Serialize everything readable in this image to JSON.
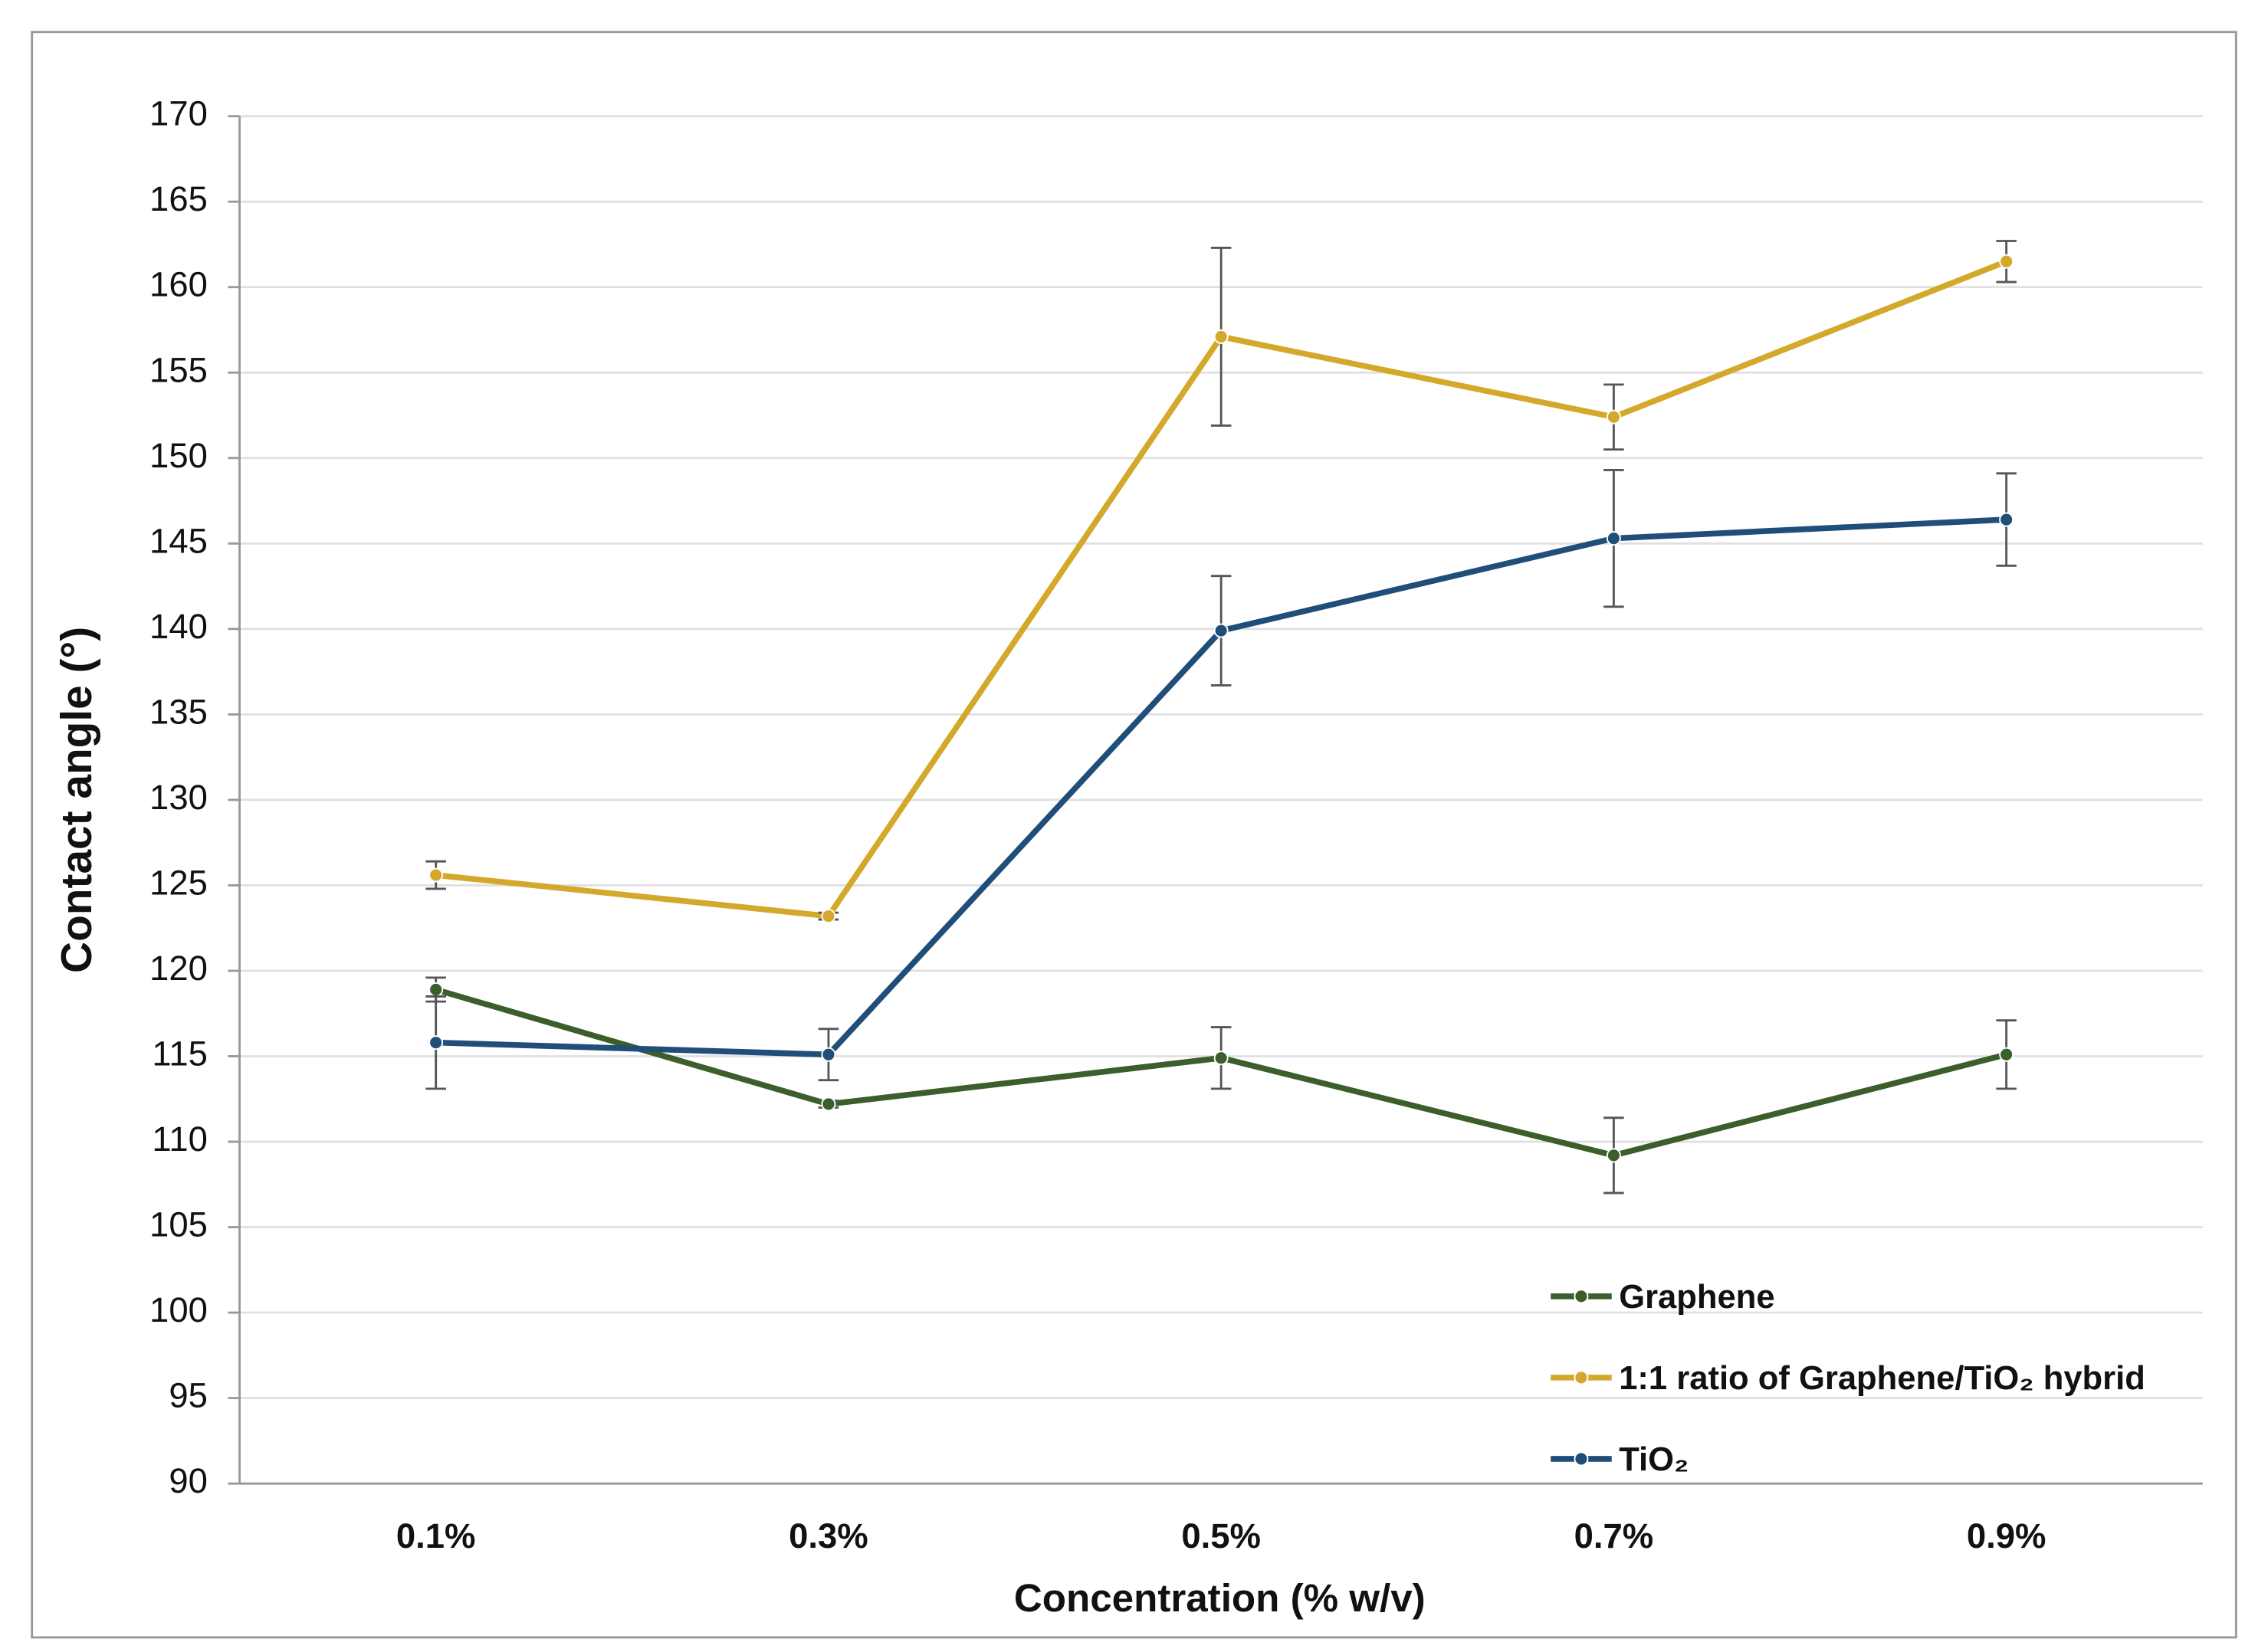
{
  "chart_data": {
    "type": "line",
    "x_label": "Concentration (% w/v)",
    "y_label": "Contact angle (°)",
    "categories": [
      "0.1%",
      "0.3%",
      "0.5%",
      "0.7%",
      "0.9%"
    ],
    "series": [
      {
        "name": "Graphene",
        "color": "#3b5e2b",
        "values": [
          118.9,
          112.2,
          114.9,
          109.2,
          115.1
        ],
        "errors": [
          0.7,
          0.2,
          1.8,
          2.2,
          2.0
        ]
      },
      {
        "name": "1:1 ratio of Graphene/TiO₂ hybrid",
        "color": "#d4a82a",
        "values": [
          125.6,
          123.2,
          157.1,
          152.4,
          161.5
        ],
        "errors": [
          0.8,
          0.2,
          5.2,
          1.9,
          1.2
        ]
      },
      {
        "name": "TiO₂",
        "color": "#1f4e79",
        "values": [
          115.8,
          115.1,
          139.9,
          145.3,
          146.4
        ],
        "errors": [
          2.7,
          1.5,
          3.2,
          4.0,
          2.7
        ]
      }
    ],
    "ylim": [
      90,
      170
    ],
    "yticks": [
      90,
      95,
      100,
      105,
      110,
      115,
      120,
      125,
      130,
      135,
      140,
      145,
      150,
      155,
      160,
      165,
      170
    ],
    "grid": true,
    "legend": "lower right"
  }
}
